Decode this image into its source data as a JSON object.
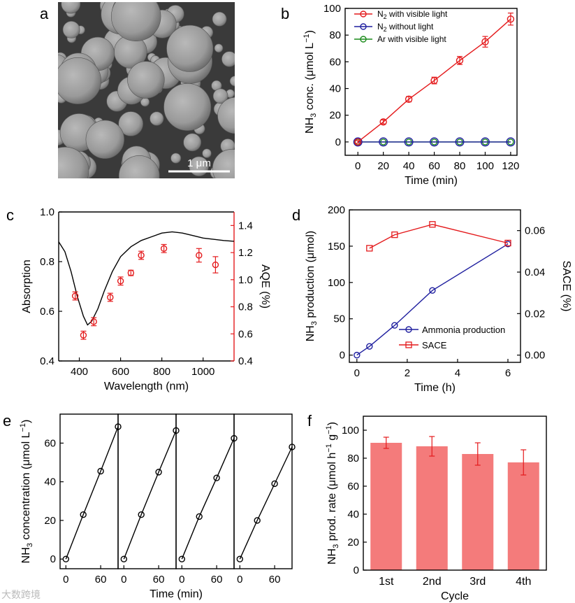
{
  "panel_labels": {
    "a": "a",
    "b": "b",
    "c": "c",
    "d": "d",
    "e": "e",
    "f": "f"
  },
  "panel_a": {
    "scale_bar": "1 μm"
  },
  "watermark": "大数跨境",
  "chart_data": [
    {
      "id": "b",
      "type": "line",
      "xlabel": "Time (min)",
      "ylabel": "NH3 conc. (μmol L−1)",
      "xlim": [
        -10,
        125
      ],
      "ylim": [
        -10,
        100
      ],
      "xticks": [
        0,
        20,
        40,
        60,
        80,
        100,
        120
      ],
      "yticks": [
        0,
        20,
        40,
        60,
        80,
        100
      ],
      "series": [
        {
          "name": "N2 with visible light",
          "color": "#e41a1c",
          "x": [
            0,
            20,
            40,
            60,
            80,
            100,
            120
          ],
          "y": [
            0,
            15,
            32,
            46,
            61,
            75,
            92
          ],
          "err": [
            1,
            1.5,
            2,
            2.5,
            3,
            4,
            4.5
          ]
        },
        {
          "name": "N2 without light",
          "color": "#1f1f9f",
          "x": [
            0,
            20,
            40,
            60,
            80,
            100,
            120
          ],
          "y": [
            0,
            0,
            0,
            0,
            0,
            0,
            0
          ]
        },
        {
          "name": "Ar with visible light",
          "color": "#1a8a1a",
          "x": [
            0,
            20,
            40,
            60,
            80,
            100,
            120
          ],
          "y": [
            0,
            0,
            0,
            0,
            0,
            0,
            0
          ]
        }
      ]
    },
    {
      "id": "c",
      "type": "line+scatter",
      "xlabel": "Wavelength (nm)",
      "ylabel_left": "Absorption",
      "ylabel_right": "AQE (%)",
      "xlim": [
        300,
        1150
      ],
      "ylim_left": [
        0.4,
        1.0
      ],
      "ylim_right": [
        0.4,
        1.5
      ],
      "xticks": [
        400,
        600,
        800,
        1000
      ],
      "yticks_left": [
        0.4,
        0.6,
        0.8,
        1.0
      ],
      "yticks_right": [
        0.4,
        0.6,
        0.8,
        1.0,
        1.2,
        1.4
      ],
      "absorption": {
        "x": [
          300,
          330,
          360,
          390,
          420,
          440,
          460,
          490,
          520,
          560,
          600,
          650,
          700,
          750,
          800,
          850,
          900,
          950,
          1000,
          1050,
          1100,
          1150
        ],
        "y": [
          0.88,
          0.84,
          0.76,
          0.66,
          0.58,
          0.545,
          0.56,
          0.61,
          0.68,
          0.76,
          0.82,
          0.86,
          0.885,
          0.9,
          0.915,
          0.92,
          0.915,
          0.905,
          0.895,
          0.89,
          0.885,
          0.882
        ]
      },
      "aqe": {
        "x": [
          380,
          420,
          470,
          550,
          600,
          650,
          700,
          810,
          980,
          1060
        ],
        "y": [
          0.88,
          0.59,
          0.69,
          0.87,
          0.99,
          1.05,
          1.18,
          1.23,
          1.18,
          1.11
        ],
        "err": [
          0.03,
          0.03,
          0.03,
          0.03,
          0.03,
          0.02,
          0.03,
          0.03,
          0.05,
          0.06
        ]
      }
    },
    {
      "id": "d",
      "type": "line",
      "xlabel": "Time (h)",
      "ylabel_left": "NH3 production (μmol)",
      "ylabel_right": "SACE (%)",
      "xlim": [
        -0.3,
        6.5
      ],
      "ylim_left": [
        -10,
        200
      ],
      "ylim_right": [
        -0.0035,
        0.07
      ],
      "xticks": [
        0,
        2,
        4,
        6
      ],
      "yticks_left": [
        0,
        50,
        100,
        150,
        200
      ],
      "yticks_right": [
        "0.00",
        "0.02",
        "0.04",
        "0.06"
      ],
      "series": [
        {
          "name": "Ammonia production",
          "color": "#1f1f9f",
          "axis": "left",
          "x": [
            0,
            0.5,
            1.5,
            3,
            6
          ],
          "y": [
            0,
            12,
            41,
            89,
            153
          ]
        },
        {
          "name": "SACE",
          "color": "#e41a1c",
          "axis": "right",
          "x": [
            0.5,
            1.5,
            3,
            6
          ],
          "y": [
            0.0515,
            0.058,
            0.063,
            0.054
          ]
        }
      ]
    },
    {
      "id": "e",
      "type": "line",
      "xlabel": "Time (min)",
      "ylabel": "NH3 concentration (μmol L−1)",
      "xlim": [
        -10,
        90
      ],
      "ylim": [
        -5,
        75
      ],
      "xticks": [
        0,
        60
      ],
      "yticks": [
        0,
        20,
        40,
        60
      ],
      "cycles": [
        {
          "x": [
            0,
            30,
            60,
            90
          ],
          "y": [
            0,
            23,
            45.5,
            68.5
          ]
        },
        {
          "x": [
            0,
            30,
            60,
            90
          ],
          "y": [
            0,
            23,
            45,
            66.5
          ]
        },
        {
          "x": [
            0,
            30,
            60,
            90
          ],
          "y": [
            0,
            22,
            42,
            62.5
          ]
        },
        {
          "x": [
            0,
            30,
            60,
            90
          ],
          "y": [
            0,
            20,
            39,
            58
          ]
        }
      ]
    },
    {
      "id": "f",
      "type": "bar",
      "xlabel": "Cycle",
      "ylabel": "NH3 prod. rate (μmol h−1 g−1)",
      "categories": [
        "1st",
        "2nd",
        "3rd",
        "4th"
      ],
      "values": [
        91,
        88.5,
        83,
        77
      ],
      "err": [
        4,
        7,
        8,
        9
      ],
      "ylim": [
        0,
        110
      ],
      "yticks": [
        0,
        20,
        40,
        60,
        80,
        100
      ],
      "bar_color": "#f47b7b",
      "err_color": "#e41a1c"
    }
  ]
}
